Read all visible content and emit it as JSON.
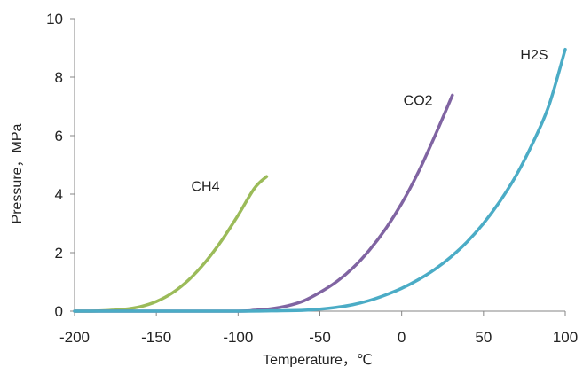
{
  "chart_data": {
    "type": "line",
    "title": "",
    "xlabel": "Temperature，℃",
    "ylabel": "Pressure，MPa",
    "xlim": [
      -200,
      100
    ],
    "ylim": [
      0,
      10
    ],
    "xticks": [
      -200,
      -150,
      -100,
      -50,
      0,
      50,
      100
    ],
    "yticks": [
      0,
      2,
      4,
      6,
      8,
      10
    ],
    "grid": false,
    "legend": "none",
    "series": [
      {
        "name": "CH4",
        "color": "#9BBB59",
        "label_at": [
          -120,
          4.1
        ],
        "x": [
          -200,
          -190,
          -180,
          -170,
          -160,
          -150,
          -140,
          -130,
          -120,
          -110,
          -100,
          -90,
          -82.6
        ],
        "y": [
          0.0,
          0.0,
          0.02,
          0.06,
          0.15,
          0.33,
          0.63,
          1.08,
          1.68,
          2.42,
          3.28,
          4.2,
          4.6
        ]
      },
      {
        "name": "CO2",
        "color": "#8064A2",
        "label_at": [
          10,
          7.05
        ],
        "x": [
          -200,
          -150,
          -100,
          -90,
          -80,
          -70,
          -60,
          -50,
          -40,
          -30,
          -20,
          -10,
          0,
          10,
          20,
          31
        ],
        "y": [
          0.0,
          0.0,
          0.0,
          0.03,
          0.08,
          0.18,
          0.35,
          0.64,
          1.0,
          1.47,
          2.07,
          2.8,
          3.68,
          4.73,
          5.95,
          7.38
        ]
      },
      {
        "name": "H2S",
        "color": "#4BACC6",
        "label_at": [
          81,
          8.6
        ],
        "x": [
          -200,
          -150,
          -100,
          -80,
          -60,
          -50,
          -40,
          -30,
          -20,
          -10,
          0,
          10,
          20,
          30,
          40,
          50,
          60,
          70,
          80,
          90,
          100
        ],
        "y": [
          0.0,
          0.0,
          0.0,
          0.01,
          0.03,
          0.07,
          0.13,
          0.22,
          0.36,
          0.55,
          0.78,
          1.07,
          1.42,
          1.85,
          2.37,
          3.0,
          3.75,
          4.64,
          5.73,
          7.03,
          8.95
        ]
      }
    ]
  }
}
